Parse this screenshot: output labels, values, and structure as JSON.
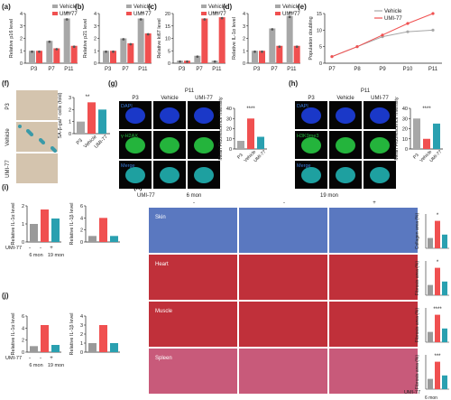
{
  "colors": {
    "vehicle": "#a7a7a7",
    "umi": "#f05050",
    "teal": "#2aa0b0",
    "blue_nuc": "#1a38c8",
    "green_nuc": "#24b43c",
    "stain_bg": "#d4c4ae",
    "skin_blue": "#5a78c0",
    "tissue_red": "#c0303a"
  },
  "panel_letters": [
    "(a)",
    "(b)",
    "(c)",
    "(d)",
    "(e)",
    "(f)",
    "(g)",
    "(h)",
    "(i)",
    "(j)",
    "(k)"
  ],
  "legend": {
    "vehicle": "Vehicle",
    "umi": "UMI-77"
  },
  "top_charts": [
    {
      "ylabel": "Relative p16 level",
      "ymax": 4,
      "yticks": [
        "0",
        "1",
        "2",
        "3",
        "4"
      ],
      "sig": "***"
    },
    {
      "ylabel": "Relative p21 level",
      "ymax": 4,
      "yticks": [
        "0",
        "1",
        "2",
        "3",
        "4"
      ],
      "sig": "**"
    },
    {
      "ylabel": "Relative ki67 level",
      "ymax": 20,
      "yticks": [
        "0",
        "5",
        "10",
        "15",
        "20"
      ],
      "sig": "****"
    },
    {
      "ylabel": "Relative IL-1α level",
      "ymax": 4,
      "yticks": [
        "0",
        "1",
        "2",
        "3",
        "4"
      ],
      "sig": "***"
    }
  ],
  "top_categories": [
    "P3",
    "P7",
    "P11"
  ],
  "extra_sigs": {
    "c": "****",
    "d": "*"
  },
  "panel_e": {
    "ylabel": "Population doubling",
    "yticks": [
      "0",
      "5",
      "10",
      "15"
    ],
    "xticks": [
      "P7",
      "P8",
      "P9",
      "P10",
      "P11"
    ]
  },
  "panel_f": {
    "row_labels": [
      "P3",
      "Vehicle",
      "UMI-77"
    ],
    "group_label": "P11",
    "ylabel": "SA-β-gal⁺ cells (fold)",
    "yticks": [
      "0",
      "1",
      "2",
      "3"
    ],
    "categories": [
      "P3",
      "Vehicle",
      "UMI-77"
    ],
    "sigs": [
      "**",
      "**"
    ]
  },
  "panel_g": {
    "header": "P11",
    "cols": [
      "P3",
      "Vehicle",
      "UMI-77"
    ],
    "rows": [
      "DAPI",
      "γ-H2AX",
      "Merge"
    ],
    "ylabel": "Mean Fluorescence Intensity",
    "categories": [
      "P3",
      "Vehicle",
      "UMI-77"
    ],
    "group": "P11",
    "sigs": [
      "****",
      "****"
    ]
  },
  "panel_h": {
    "header": "P11",
    "cols": [
      "P3",
      "Vehicle",
      "UMI-77"
    ],
    "rows": [
      "DAPI",
      "H3K9me3",
      "Merge"
    ],
    "ylabel": "Mean Fluorescence Intensity",
    "categories": [
      "P3",
      "Vehicle",
      "UMI-77"
    ],
    "group": "P11",
    "sigs": [
      "****",
      "****"
    ]
  },
  "panel_i": {
    "left_ylabel": "Relative IL-1α level",
    "right_ylabel": "Relative IL-1β level",
    "row_label": "UMI-77",
    "signs": [
      "-",
      "-",
      "+"
    ],
    "groups": [
      "6 mon",
      "19 mon"
    ],
    "sigs_left": [
      "*",
      "**"
    ],
    "sigs_right": [
      "*",
      "*"
    ]
  },
  "panel_j": {
    "left_ylabel": "Relative IL-1α level",
    "right_ylabel": "Relative IL-1β level",
    "row_label": "UMI-77",
    "signs": [
      "-",
      "-",
      "+"
    ],
    "groups": [
      "6 mon",
      "19 mon"
    ],
    "sigs_left": [
      "*",
      "*"
    ],
    "sigs_right": [
      "*",
      "*"
    ]
  },
  "panel_k": {
    "row_label": "UMI-77",
    "col_groups": [
      "6 mon",
      "19 mon"
    ],
    "signs": [
      "-",
      "-",
      "+"
    ],
    "tissues": [
      "Skin",
      "Heart",
      "Muscle",
      "Spleen"
    ],
    "charts": [
      {
        "ylabel": "Collagen area (%)",
        "sigs": [
          "*",
          "*"
        ]
      },
      {
        "ylabel": "Fibrosis area (%)",
        "sigs": [
          "*",
          "**"
        ]
      },
      {
        "ylabel": "Fibrosis area (%)",
        "sigs": [
          "****",
          "****"
        ]
      },
      {
        "ylabel": "Fibrosis area (%)",
        "sigs": [
          "***",
          "***"
        ]
      }
    ],
    "bottom_groups": [
      "6 mon",
      "19 mon"
    ]
  },
  "chart_data": [
    {
      "type": "bar",
      "title": "",
      "ylabel": "Relative p16 level",
      "categories": [
        "P3",
        "P7",
        "P11"
      ],
      "series": [
        {
          "name": "Vehicle",
          "values": [
            1.0,
            1.8,
            3.6
          ]
        },
        {
          "name": "UMI-77",
          "values": [
            1.0,
            1.2,
            1.4
          ]
        }
      ],
      "ylim": [
        0,
        4
      ]
    },
    {
      "type": "bar",
      "title": "",
      "ylabel": "Relative p21 level",
      "categories": [
        "P3",
        "P7",
        "P11"
      ],
      "series": [
        {
          "name": "Vehicle",
          "values": [
            1.0,
            2.0,
            3.6
          ]
        },
        {
          "name": "UMI-77",
          "values": [
            1.0,
            1.6,
            2.4
          ]
        }
      ],
      "ylim": [
        0,
        4
      ]
    },
    {
      "type": "bar",
      "title": "",
      "ylabel": "Relative ki67 level",
      "categories": [
        "P3",
        "P7",
        "P11"
      ],
      "series": [
        {
          "name": "Vehicle",
          "values": [
            1.0,
            3.0,
            1.0
          ]
        },
        {
          "name": "UMI-77",
          "values": [
            1.0,
            18.0,
            18.5
          ]
        }
      ],
      "ylim": [
        0,
        20
      ]
    },
    {
      "type": "bar",
      "title": "",
      "ylabel": "Relative IL-1α level",
      "categories": [
        "P3",
        "P7",
        "P11"
      ],
      "series": [
        {
          "name": "Vehicle",
          "values": [
            1.0,
            2.8,
            3.8
          ]
        },
        {
          "name": "UMI-77",
          "values": [
            1.0,
            1.4,
            1.4
          ]
        }
      ],
      "ylim": [
        0,
        4
      ]
    },
    {
      "type": "line",
      "title": "",
      "ylabel": "Population doubling",
      "x": [
        "P7",
        "P8",
        "P9",
        "P10",
        "P11"
      ],
      "series": [
        {
          "name": "Vehicle",
          "values": [
            2,
            5,
            8,
            9.5,
            10
          ]
        },
        {
          "name": "UMI-77",
          "values": [
            2,
            5,
            8.5,
            12,
            15
          ]
        }
      ],
      "ylim": [
        0,
        15
      ]
    },
    {
      "type": "bar",
      "title": "",
      "ylabel": "SA-β-gal⁺ cells (fold)",
      "categories": [
        "P3",
        "Vehicle",
        "UMI-77"
      ],
      "values": [
        1.0,
        2.6,
        2.0
      ],
      "ylim": [
        0,
        3
      ]
    },
    {
      "type": "bar",
      "title": "",
      "ylabel": "Mean Fluorescence Intensity",
      "categories": [
        "P3",
        "Vehicle",
        "UMI-77"
      ],
      "values": [
        8,
        30,
        12
      ],
      "ylim": [
        0,
        40
      ]
    },
    {
      "type": "bar",
      "title": "",
      "ylabel": "Mean Fluorescence Intensity",
      "categories": [
        "P3",
        "Vehicle",
        "UMI-77"
      ],
      "values": [
        30,
        10,
        25
      ],
      "ylim": [
        0,
        40
      ]
    },
    {
      "type": "bar",
      "title": "",
      "ylabel": "Relative IL-1α level",
      "categories": [
        "6 mon",
        "19 mon -",
        "19 mon +"
      ],
      "values": [
        1.0,
        1.8,
        1.3
      ],
      "ylim": [
        0,
        2
      ]
    },
    {
      "type": "bar",
      "title": "",
      "ylabel": "Relative IL-1β level",
      "categories": [
        "6 mon",
        "19 mon -",
        "19 mon +"
      ],
      "values": [
        1.0,
        4.0,
        1.0
      ],
      "ylim": [
        0,
        6
      ]
    },
    {
      "type": "bar",
      "title": "",
      "ylabel": "Relative IL-1α level",
      "categories": [
        "6 mon",
        "19 mon -",
        "19 mon +"
      ],
      "values": [
        1.0,
        4.5,
        1.2
      ],
      "ylim": [
        0,
        6
      ]
    },
    {
      "type": "bar",
      "title": "",
      "ylabel": "Relative IL-1β level",
      "categories": [
        "6 mon",
        "19 mon -",
        "19 mon +"
      ],
      "values": [
        1.0,
        3.0,
        1.0
      ],
      "ylim": [
        0,
        4
      ]
    }
  ]
}
